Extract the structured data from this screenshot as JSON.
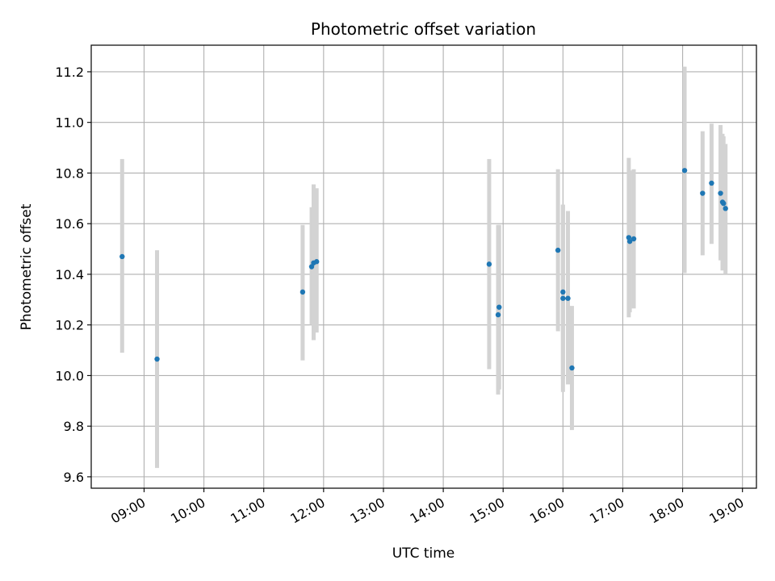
{
  "chart_data": {
    "type": "scatter",
    "title": "Photometric offset variation",
    "xlabel": "UTC time",
    "ylabel": "Photometric offset",
    "x_axis_type": "time",
    "xlim": [
      "08:07",
      "19:14"
    ],
    "ylim": [
      9.555,
      11.305
    ],
    "x_ticks": [
      "09:00",
      "10:00",
      "11:00",
      "12:00",
      "13:00",
      "14:00",
      "15:00",
      "16:00",
      "17:00",
      "18:00",
      "19:00"
    ],
    "y_ticks": [
      9.6,
      9.8,
      10.0,
      10.2,
      10.4,
      10.6,
      10.8,
      11.0,
      11.2
    ],
    "y_tick_labels": [
      "9.6",
      "9.8",
      "10.0",
      "10.2",
      "10.4",
      "10.6",
      "10.8",
      "11.0",
      "11.2"
    ],
    "grid": true,
    "point_color": "#1f77b4",
    "errorbar_color": "#d3d3d3",
    "points": [
      {
        "t": "08:38",
        "y": 10.47,
        "lo": 10.09,
        "hi": 10.855
      },
      {
        "t": "09:13",
        "y": 10.065,
        "lo": 9.635,
        "hi": 10.495
      },
      {
        "t": "11:39",
        "y": 10.33,
        "lo": 10.06,
        "hi": 10.595
      },
      {
        "t": "11:48",
        "y": 10.43,
        "lo": 10.2,
        "hi": 10.665
      },
      {
        "t": "11:50",
        "y": 10.445,
        "lo": 10.14,
        "hi": 10.755
      },
      {
        "t": "11:53",
        "y": 10.45,
        "lo": 10.17,
        "hi": 10.74
      },
      {
        "t": "14:46",
        "y": 10.44,
        "lo": 10.025,
        "hi": 10.855
      },
      {
        "t": "14:55",
        "y": 10.24,
        "lo": 9.925,
        "hi": 10.595
      },
      {
        "t": "14:56",
        "y": 10.27,
        "lo": 9.945,
        "hi": 10.595
      },
      {
        "t": "15:55",
        "y": 10.495,
        "lo": 10.175,
        "hi": 10.815
      },
      {
        "t": "16:00",
        "y": 10.33,
        "lo": 9.985,
        "hi": 10.675
      },
      {
        "t": "16:00",
        "y": 10.305,
        "lo": 9.935,
        "hi": 10.675
      },
      {
        "t": "16:05",
        "y": 10.305,
        "lo": 9.965,
        "hi": 10.65
      },
      {
        "t": "16:09",
        "y": 10.03,
        "lo": 9.785,
        "hi": 10.275
      },
      {
        "t": "17:06",
        "y": 10.545,
        "lo": 10.23,
        "hi": 10.86
      },
      {
        "t": "17:07",
        "y": 10.53,
        "lo": 10.25,
        "hi": 10.81
      },
      {
        "t": "17:11",
        "y": 10.54,
        "lo": 10.265,
        "hi": 10.815
      },
      {
        "t": "18:02",
        "y": 10.81,
        "lo": 10.405,
        "hi": 11.22
      },
      {
        "t": "18:20",
        "y": 10.72,
        "lo": 10.475,
        "hi": 10.965
      },
      {
        "t": "18:29",
        "y": 10.76,
        "lo": 10.52,
        "hi": 10.995
      },
      {
        "t": "18:38",
        "y": 10.72,
        "lo": 10.455,
        "hi": 10.99
      },
      {
        "t": "18:40",
        "y": 10.685,
        "lo": 10.415,
        "hi": 10.955
      },
      {
        "t": "18:41",
        "y": 10.68,
        "lo": 10.42,
        "hi": 10.945
      },
      {
        "t": "18:43",
        "y": 10.66,
        "lo": 10.4,
        "hi": 10.915
      }
    ]
  }
}
